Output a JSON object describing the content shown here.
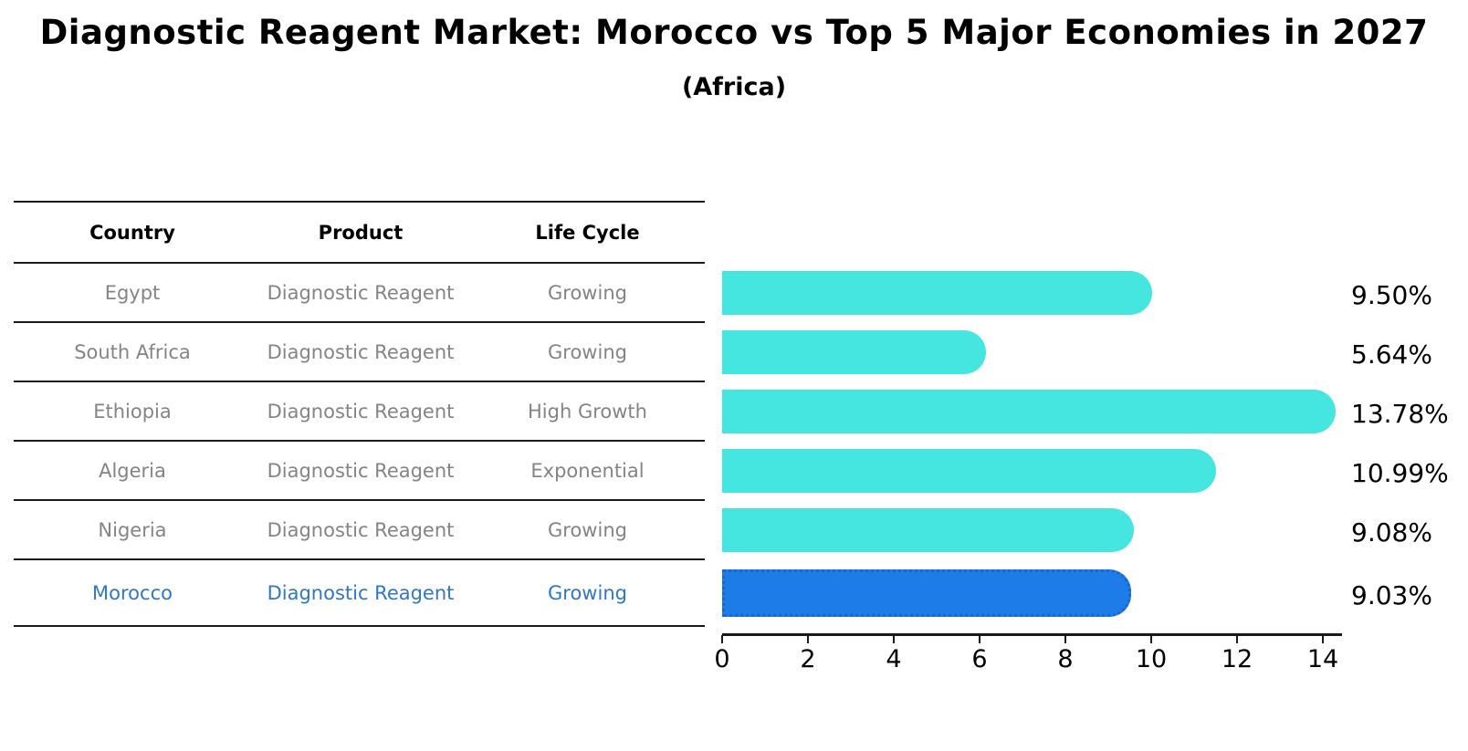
{
  "title": "Diagnostic Reagent Market: Morocco vs Top 5 Major Economies in 2027",
  "subtitle": "(Africa)",
  "table": {
    "headers": [
      "Country",
      "Product",
      "Life Cycle"
    ],
    "rows": [
      {
        "country": "Egypt",
        "product": "Diagnostic Reagent",
        "life_cycle": "Growing"
      },
      {
        "country": "South Africa",
        "product": "Diagnostic Reagent",
        "life_cycle": "Growing"
      },
      {
        "country": "Ethiopia",
        "product": "Diagnostic Reagent",
        "life_cycle": "High Growth"
      },
      {
        "country": "Algeria",
        "product": "Diagnostic Reagent",
        "life_cycle": "Exponential"
      },
      {
        "country": "Nigeria",
        "product": "Diagnostic Reagent",
        "life_cycle": "Growing"
      },
      {
        "country": "Morocco",
        "product": "Diagnostic Reagent",
        "life_cycle": "Growing"
      }
    ],
    "highlight_row_index": 5
  },
  "chart_data": {
    "type": "bar",
    "orientation": "horizontal",
    "categories": [
      "Egypt",
      "South Africa",
      "Ethiopia",
      "Algeria",
      "Nigeria",
      "Morocco"
    ],
    "values": [
      9.5,
      5.64,
      13.78,
      10.99,
      9.08,
      9.03
    ],
    "value_labels": [
      "9.50%",
      "5.64%",
      "13.78%",
      "10.99%",
      "9.08%",
      "9.03%"
    ],
    "x_ticks": [
      "0",
      "2",
      "4",
      "6",
      "8",
      "10",
      "12",
      "14"
    ],
    "xlim": [
      0,
      14.4
    ],
    "grid": false,
    "legend": "none",
    "xlabel": "",
    "ylabel": "",
    "highlight_index": 5
  },
  "colors": {
    "bar": "#46E6E0",
    "highlight_bar": "#1E7CE8",
    "highlight_bar_border": "#1B66CC",
    "highlight_text": "#2E78C4",
    "table_text": "#848484",
    "header_text": "#000000",
    "axis": "#1a1a1a",
    "background": "#ffffff"
  }
}
